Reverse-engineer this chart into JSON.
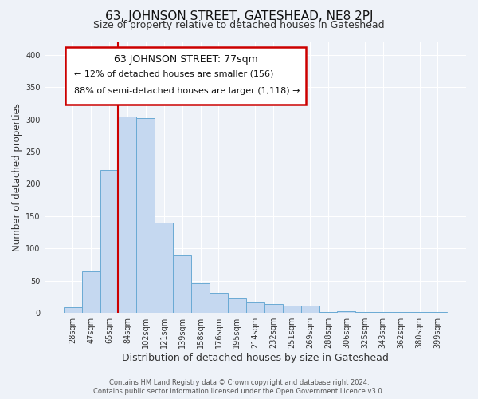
{
  "title": "63, JOHNSON STREET, GATESHEAD, NE8 2PJ",
  "subtitle": "Size of property relative to detached houses in Gateshead",
  "xlabel": "Distribution of detached houses by size in Gateshead",
  "ylabel": "Number of detached properties",
  "categories": [
    "28sqm",
    "47sqm",
    "65sqm",
    "84sqm",
    "102sqm",
    "121sqm",
    "139sqm",
    "158sqm",
    "176sqm",
    "195sqm",
    "214sqm",
    "232sqm",
    "251sqm",
    "269sqm",
    "288sqm",
    "306sqm",
    "325sqm",
    "343sqm",
    "362sqm",
    "380sqm",
    "399sqm"
  ],
  "values": [
    9,
    64,
    221,
    305,
    302,
    140,
    89,
    46,
    31,
    22,
    16,
    14,
    11,
    11,
    2,
    3,
    2,
    2,
    2,
    2,
    2
  ],
  "bar_color": "#c5d8f0",
  "bar_edge_color": "#6aaad4",
  "vline_color": "#cc0000",
  "annotation_title": "63 JOHNSON STREET: 77sqm",
  "annotation_line1": "← 12% of detached houses are smaller (156)",
  "annotation_line2": "88% of semi-detached houses are larger (1,118) →",
  "annotation_box_edge_color": "#cc0000",
  "ylim": [
    0,
    420
  ],
  "yticks": [
    0,
    50,
    100,
    150,
    200,
    250,
    300,
    350,
    400
  ],
  "footer1": "Contains HM Land Registry data © Crown copyright and database right 2024.",
  "footer2": "Contains public sector information licensed under the Open Government Licence v3.0.",
  "bg_color": "#eef2f8",
  "grid_color": "#ffffff",
  "title_fontsize": 11,
  "subtitle_fontsize": 9,
  "ylabel_fontsize": 8.5,
  "xlabel_fontsize": 9,
  "tick_fontsize": 7,
  "ann_title_fontsize": 9,
  "ann_text_fontsize": 8,
  "footer_fontsize": 6
}
